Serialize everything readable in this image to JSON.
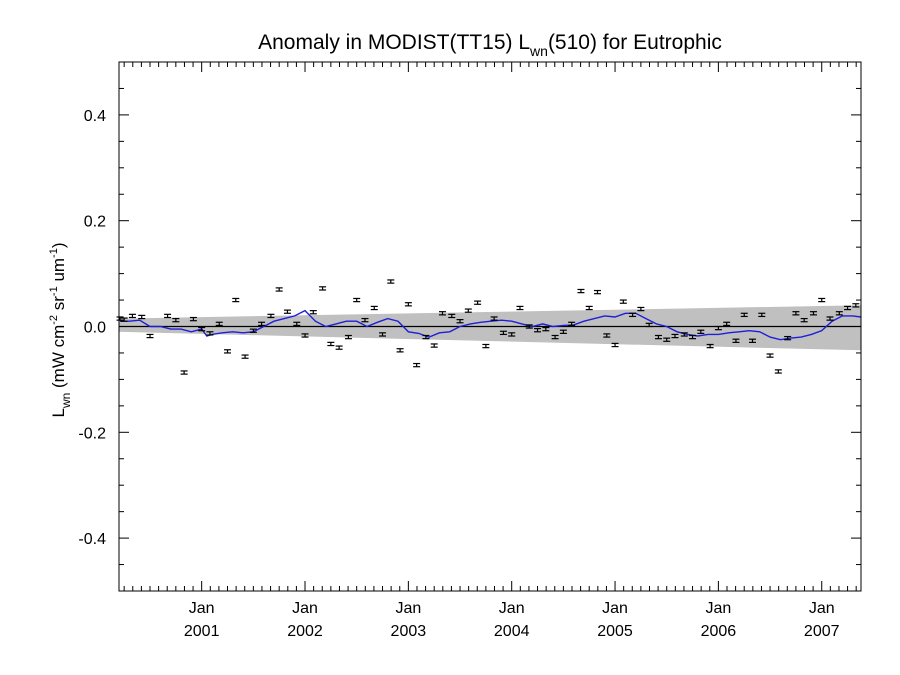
{
  "chart_data": {
    "type": "line",
    "title": {
      "prefix": "Anomaly in MODIST(TT15) L",
      "subscript": "wn",
      "suffix": "(510) for Eutrophic"
    },
    "ylabel": {
      "main": "L",
      "main_sub": "wn",
      "unit_open": " (mW cm",
      "exp1": "-2",
      "part2": " sr",
      "exp2": "-1",
      "part3": " um",
      "exp3": "-1",
      "unit_close": ")"
    },
    "xlabel": "",
    "xlim": [
      2000.2,
      2007.38
    ],
    "ylim": [
      -0.5,
      0.5
    ],
    "yticks": [
      {
        "value": 0.4,
        "label": "0.4"
      },
      {
        "value": 0.2,
        "label": "0.2"
      },
      {
        "value": 0.0,
        "label": "0.0"
      },
      {
        "value": -0.2,
        "label": "-0.2"
      },
      {
        "value": -0.4,
        "label": "-0.4"
      }
    ],
    "xticks": [
      {
        "value": 2001.0,
        "label_top": "Jan",
        "label_bottom": "2001"
      },
      {
        "value": 2002.0,
        "label_top": "Jan",
        "label_bottom": "2002"
      },
      {
        "value": 2003.0,
        "label_top": "Jan",
        "label_bottom": "2003"
      },
      {
        "value": 2004.0,
        "label_top": "Jan",
        "label_bottom": "2004"
      },
      {
        "value": 2005.0,
        "label_top": "Jan",
        "label_bottom": "2005"
      },
      {
        "value": 2006.0,
        "label_top": "Jan",
        "label_bottom": "2006"
      },
      {
        "value": 2007.0,
        "label_top": "Jan",
        "label_bottom": "2007"
      }
    ],
    "zero_line": 0.0,
    "band": {
      "color": "#c0c0c0",
      "lower": [
        [
          2000.2,
          -0.01
        ],
        [
          2007.38,
          -0.045
        ]
      ],
      "upper": [
        [
          2000.2,
          0.015
        ],
        [
          2007.38,
          0.04
        ]
      ]
    },
    "points": {
      "name": "monthly anomaly",
      "color": "#000000",
      "error": 0.003,
      "x": [
        2000.21,
        2000.25,
        2000.33,
        2000.42,
        2000.5,
        2000.67,
        2000.75,
        2000.83,
        2000.92,
        2001.0,
        2001.08,
        2001.17,
        2001.25,
        2001.33,
        2001.42,
        2001.5,
        2001.58,
        2001.67,
        2001.75,
        2001.83,
        2001.92,
        2002.0,
        2002.08,
        2002.17,
        2002.25,
        2002.33,
        2002.42,
        2002.5,
        2002.58,
        2002.67,
        2002.75,
        2002.83,
        2002.92,
        2003.0,
        2003.08,
        2003.17,
        2003.25,
        2003.33,
        2003.42,
        2003.5,
        2003.58,
        2003.67,
        2003.75,
        2003.83,
        2003.92,
        2004.0,
        2004.08,
        2004.17,
        2004.25,
        2004.33,
        2004.42,
        2004.5,
        2004.58,
        2004.67,
        2004.75,
        2004.83,
        2004.92,
        2005.0,
        2005.08,
        2005.17,
        2005.25,
        2005.33,
        2005.42,
        2005.5,
        2005.58,
        2005.67,
        2005.75,
        2005.83,
        2005.92,
        2006.0,
        2006.08,
        2006.17,
        2006.25,
        2006.33,
        2006.42,
        2006.5,
        2006.58,
        2006.67,
        2006.75,
        2006.83,
        2006.92,
        2007.0,
        2007.08,
        2007.17,
        2007.25,
        2007.33
      ],
      "y": [
        0.015,
        0.013,
        0.02,
        0.018,
        -0.018,
        0.02,
        0.012,
        -0.087,
        0.014,
        -0.005,
        -0.013,
        0.005,
        -0.047,
        0.05,
        -0.057,
        -0.008,
        0.005,
        0.02,
        0.07,
        0.028,
        0.005,
        -0.017,
        0.027,
        0.072,
        -0.033,
        -0.04,
        -0.02,
        0.05,
        0.012,
        0.035,
        -0.015,
        0.085,
        -0.045,
        0.042,
        -0.073,
        -0.02,
        -0.036,
        0.025,
        0.02,
        0.01,
        0.03,
        0.045,
        -0.037,
        0.015,
        -0.012,
        -0.015,
        0.035,
        0.0,
        -0.007,
        -0.005,
        -0.02,
        -0.01,
        0.005,
        0.067,
        0.035,
        0.065,
        -0.017,
        -0.035,
        0.047,
        0.022,
        0.033,
        0.003,
        -0.02,
        -0.025,
        -0.018,
        -0.015,
        -0.02,
        -0.01,
        -0.037,
        -0.003,
        0.005,
        -0.027,
        0.022,
        -0.027,
        0.022,
        -0.055,
        -0.085,
        -0.022,
        0.025,
        0.012,
        0.025,
        0.05,
        0.015,
        0.025,
        0.035,
        0.04
      ]
    },
    "series": [
      {
        "name": "smoothed",
        "color": "#1f1fd8",
        "x": [
          2000.21,
          2000.3,
          2000.4,
          2000.5,
          2000.6,
          2000.7,
          2000.8,
          2000.9,
          2001.0,
          2001.05,
          2001.1,
          2001.2,
          2001.3,
          2001.4,
          2001.5,
          2001.6,
          2001.7,
          2001.8,
          2001.9,
          2002.0,
          2002.1,
          2002.2,
          2002.3,
          2002.4,
          2002.5,
          2002.6,
          2002.7,
          2002.8,
          2002.9,
          2003.0,
          2003.1,
          2003.2,
          2003.3,
          2003.4,
          2003.5,
          2003.6,
          2003.7,
          2003.8,
          2003.9,
          2004.0,
          2004.1,
          2004.2,
          2004.3,
          2004.4,
          2004.5,
          2004.6,
          2004.7,
          2004.8,
          2004.9,
          2005.0,
          2005.1,
          2005.2,
          2005.3,
          2005.4,
          2005.5,
          2005.6,
          2005.7,
          2005.8,
          2005.9,
          2006.0,
          2006.1,
          2006.2,
          2006.3,
          2006.4,
          2006.5,
          2006.6,
          2006.7,
          2006.8,
          2006.9,
          2007.0,
          2007.1,
          2007.2,
          2007.3,
          2007.38
        ],
        "y": [
          0.01,
          0.01,
          0.012,
          0.0,
          0.0,
          -0.005,
          -0.005,
          -0.01,
          -0.005,
          -0.018,
          -0.015,
          -0.012,
          -0.01,
          -0.012,
          -0.01,
          0.0,
          0.01,
          0.015,
          0.02,
          0.03,
          0.01,
          0.0,
          0.005,
          0.01,
          0.01,
          0.0,
          0.008,
          0.015,
          0.01,
          -0.01,
          -0.013,
          -0.02,
          -0.012,
          -0.01,
          0.0,
          0.005,
          0.008,
          0.01,
          0.012,
          0.01,
          0.005,
          0.0,
          0.005,
          0.0,
          0.002,
          0.003,
          0.01,
          0.015,
          0.02,
          0.018,
          0.025,
          0.025,
          0.015,
          0.005,
          0.0,
          -0.01,
          -0.015,
          -0.018,
          -0.015,
          -0.015,
          -0.012,
          -0.01,
          -0.008,
          -0.01,
          -0.02,
          -0.025,
          -0.022,
          -0.02,
          -0.015,
          -0.008,
          0.01,
          0.02,
          0.02,
          0.018
        ]
      }
    ],
    "grid": false,
    "legend": "none"
  }
}
